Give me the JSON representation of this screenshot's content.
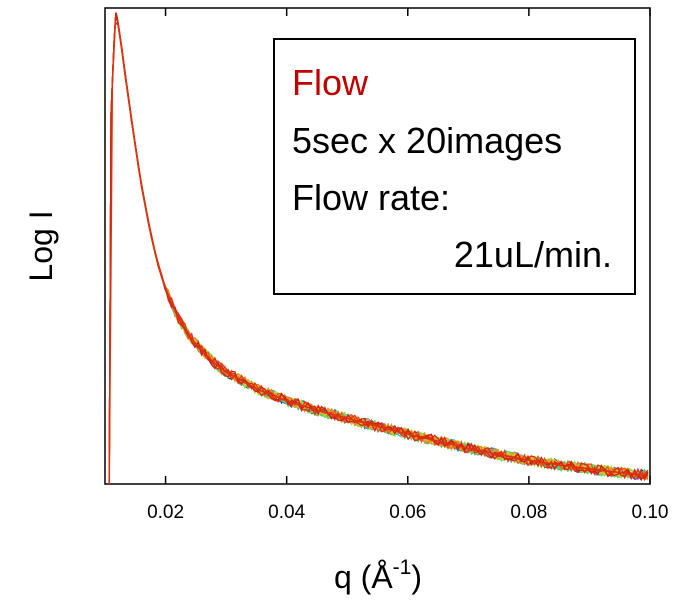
{
  "chart_data": {
    "type": "line",
    "xlabel": "q (Å-1)",
    "xlabel_base": "q (Å",
    "xlabel_sup": "-1",
    "xlabel_close": ")",
    "ylabel": "Log I",
    "xlim": [
      0.01,
      0.1
    ],
    "xticks": [
      "0.02",
      "0.04",
      "0.06",
      "0.08",
      "0.10"
    ],
    "xtick_values": [
      0.02,
      0.04,
      0.06,
      0.08,
      0.1
    ],
    "yscale": "log",
    "ytick_labels_shown": false,
    "grid": false,
    "annotation": {
      "title": "Flow",
      "title_color": "#c00000",
      "lines": [
        "5sec x 20images",
        "Flow rate:",
        "21uL/min."
      ],
      "placement": "top-right"
    },
    "series_count": 20,
    "series_colors": [
      "#1a1aa8",
      "#2233cc",
      "#3355e0",
      "#2a7fd8",
      "#2aa6d8",
      "#22c8c8",
      "#22d6a8",
      "#33d67a",
      "#55d455",
      "#7ad633",
      "#9ad622",
      "#bcd622",
      "#d6cc22",
      "#e6b422",
      "#ee9a22",
      "#ee7a22",
      "#e85522",
      "#e03a1a",
      "#d82a1a",
      "#cc2211"
    ],
    "highlight_series_color": "#e03010",
    "representative_curve": {
      "x": [
        0.0107,
        0.011,
        0.0115,
        0.0118,
        0.012,
        0.0125,
        0.013,
        0.014,
        0.015,
        0.016,
        0.017,
        0.018,
        0.019,
        0.02,
        0.022,
        0.024,
        0.026,
        0.028,
        0.03,
        0.035,
        0.04,
        0.045,
        0.05,
        0.055,
        0.06,
        0.065,
        0.07,
        0.075,
        0.08,
        0.085,
        0.09,
        0.095,
        0.1
      ],
      "y": [
        0.0,
        0.78,
        0.93,
        0.99,
        0.98,
        0.94,
        0.89,
        0.8,
        0.71,
        0.63,
        0.56,
        0.5,
        0.45,
        0.41,
        0.35,
        0.31,
        0.28,
        0.255,
        0.235,
        0.2,
        0.175,
        0.155,
        0.138,
        0.121,
        0.105,
        0.09,
        0.075,
        0.062,
        0.05,
        0.04,
        0.032,
        0.024,
        0.018
      ]
    }
  }
}
